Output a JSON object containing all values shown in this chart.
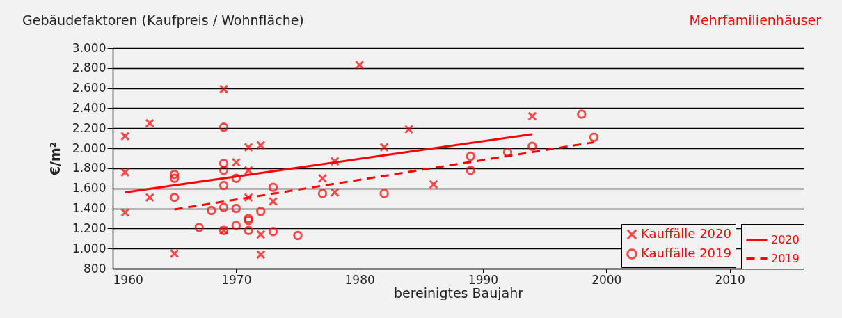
{
  "chart_data": {
    "type": "scatter",
    "title": "Gebäudefaktoren (Kaufpreis / Wohnfläche)",
    "subtitle": "Mehrfamilienhäuser",
    "xlabel": "bereinigtes Baujahr",
    "ylabel": "€/m²",
    "xlim": [
      1960,
      2016
    ],
    "xticks": [
      1960,
      1970,
      1980,
      1990,
      2000,
      2010
    ],
    "ylim": [
      800,
      3000
    ],
    "yticks": [
      {
        "value": 800,
        "label": "800"
      },
      {
        "value": 1000,
        "label": "1.000"
      },
      {
        "value": 1200,
        "label": "1.200"
      },
      {
        "value": 1400,
        "label": "1.400"
      },
      {
        "value": 1600,
        "label": "1.600"
      },
      {
        "value": 1800,
        "label": "1.800"
      },
      {
        "value": 2000,
        "label": "2.000"
      },
      {
        "value": 2200,
        "label": "2.200"
      },
      {
        "value": 2400,
        "label": "2.400"
      },
      {
        "value": 2600,
        "label": "2.600"
      },
      {
        "value": 2800,
        "label": "2.800"
      },
      {
        "value": 3000,
        "label": "3.000"
      }
    ],
    "grid": "y",
    "legend": "bottom right",
    "series": [
      {
        "name": "Kauffälle 2020",
        "marker": "cross",
        "color": "#ff0000",
        "x": [
          1961,
          1961,
          1961,
          1963,
          1963,
          1965,
          1969,
          1969,
          1970,
          1971,
          1971,
          1971,
          1972,
          1972,
          1972,
          1973,
          1977,
          1978,
          1978,
          1980,
          1982,
          1984,
          1986,
          1994
        ],
        "values": [
          2120,
          1760,
          1360,
          2250,
          1510,
          950,
          2590,
          1180,
          1860,
          2010,
          1780,
          1510,
          2030,
          1140,
          940,
          1470,
          1700,
          1870,
          1560,
          2830,
          2010,
          2190,
          1640,
          2320
        ]
      },
      {
        "name": "Kauffälle 2019",
        "marker": "circle",
        "color": "#ff0000",
        "x": [
          1965,
          1965,
          1965,
          1967,
          1968,
          1969,
          1969,
          1969,
          1969,
          1969,
          1969,
          1970,
          1970,
          1970,
          1971,
          1971,
          1971,
          1972,
          1973,
          1973,
          1975,
          1977,
          1982,
          1989,
          1989,
          1992,
          1994,
          1998,
          1999
        ],
        "values": [
          1740,
          1700,
          1510,
          1210,
          1380,
          2210,
          1850,
          1780,
          1630,
          1410,
          1180,
          1700,
          1400,
          1230,
          1300,
          1280,
          1180,
          1370,
          1610,
          1170,
          1130,
          1550,
          1550,
          1920,
          1780,
          1960,
          2020,
          2340,
          2110
        ]
      },
      {
        "name": "2020",
        "type": "line",
        "line_style": "solid",
        "color": "#ff0000",
        "x": [
          1961,
          1994
        ],
        "values": [
          1560,
          2140
        ]
      },
      {
        "name": "2019",
        "type": "line",
        "line_style": "dashed",
        "color": "#ff0000",
        "x": [
          1965,
          1999
        ],
        "values": [
          1390,
          2060
        ]
      }
    ]
  }
}
